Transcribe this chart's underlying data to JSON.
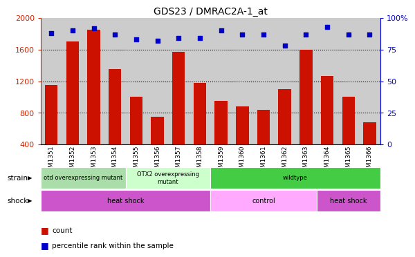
{
  "title": "GDS23 / DMRAC2A-1_at",
  "samples": [
    "GSM1351",
    "GSM1352",
    "GSM1353",
    "GSM1354",
    "GSM1355",
    "GSM1356",
    "GSM1357",
    "GSM1358",
    "GSM1359",
    "GSM1360",
    "GSM1361",
    "GSM1362",
    "GSM1363",
    "GSM1364",
    "GSM1365",
    "GSM1366"
  ],
  "counts": [
    1150,
    1700,
    1850,
    1350,
    1000,
    750,
    1570,
    1175,
    950,
    880,
    840,
    1100,
    1600,
    1270,
    1000,
    680
  ],
  "percentiles": [
    88,
    90,
    92,
    87,
    83,
    82,
    84,
    84,
    90,
    87,
    87,
    78,
    87,
    93,
    87,
    87
  ],
  "bar_color": "#CC1100",
  "dot_color": "#0000CC",
  "ylim_left": [
    400,
    2000
  ],
  "ylim_right": [
    0,
    100
  ],
  "yticks_left": [
    400,
    800,
    1200,
    1600,
    2000
  ],
  "yticks_right": [
    0,
    25,
    50,
    75,
    100
  ],
  "strain_groups": [
    {
      "label": "otd overexpressing mutant",
      "start": 0,
      "end": 4,
      "color": "#AADDAA"
    },
    {
      "label": "OTX2 overexpressing\nmutant",
      "start": 4,
      "end": 8,
      "color": "#CCFFCC"
    },
    {
      "label": "wildtype",
      "start": 8,
      "end": 16,
      "color": "#44CC44"
    }
  ],
  "shock_groups": [
    {
      "label": "heat shock",
      "start": 0,
      "end": 8,
      "color": "#CC55CC"
    },
    {
      "label": "control",
      "start": 8,
      "end": 13,
      "color": "#FFAAFF"
    },
    {
      "label": "heat shock",
      "start": 13,
      "end": 16,
      "color": "#CC55CC"
    }
  ],
  "strain_label": "strain",
  "shock_label": "shock",
  "legend_count_label": "count",
  "legend_pct_label": "percentile rank within the sample",
  "bg_color": "#CCCCCC",
  "left_axis_color": "#CC2200",
  "right_axis_color": "#0000CC",
  "grid_yticks": [
    800,
    1200,
    1600
  ]
}
